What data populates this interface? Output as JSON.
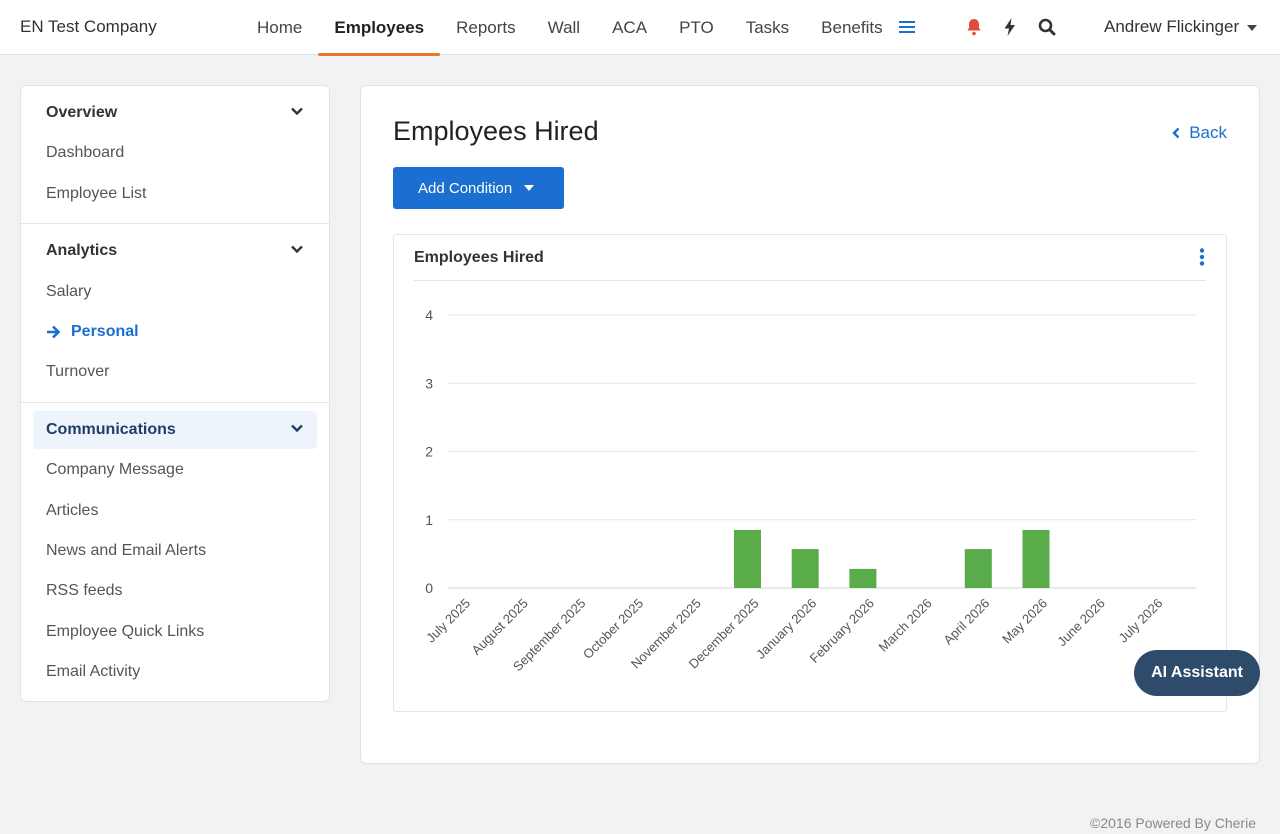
{
  "header": {
    "company": "EN Test Company",
    "nav": [
      {
        "label": "Home",
        "active": false
      },
      {
        "label": "Employees",
        "active": true
      },
      {
        "label": "Reports",
        "active": false
      },
      {
        "label": "Wall",
        "active": false
      },
      {
        "label": "ACA",
        "active": false
      },
      {
        "label": "PTO",
        "active": false
      },
      {
        "label": "Tasks",
        "active": false
      },
      {
        "label": "Benefits",
        "active": false
      }
    ],
    "icons": [
      "menu-icon",
      "bell-icon",
      "bolt-icon",
      "search-icon"
    ],
    "user_name": "Andrew Flickinger"
  },
  "sidebar": {
    "overview": {
      "title": "Overview",
      "items": [
        "Dashboard",
        "Employee List"
      ]
    },
    "analytics": {
      "title": "Analytics",
      "items": [
        "Salary",
        "Personal",
        "Turnover"
      ],
      "current": "Personal"
    },
    "communications": {
      "title": "Communications",
      "items": [
        "Company Message",
        "Articles",
        "News and Email Alerts",
        "RSS feeds",
        "Employee Quick Links",
        "Email Activity"
      ]
    }
  },
  "main": {
    "title": "Employees Hired",
    "back_label": "Back",
    "add_condition_label": "Add Condition",
    "chart_card_title": "Employees Hired"
  },
  "chart_data": {
    "type": "bar",
    "categories": [
      "July 2025",
      "August 2025",
      "September 2025",
      "October 2025",
      "November 2025",
      "December 2025",
      "January 2026",
      "February 2026",
      "March 2026",
      "April 2026",
      "May 2026",
      "June 2026",
      "July 2026"
    ],
    "values": [
      0,
      0,
      0,
      0,
      0,
      0.85,
      0.57,
      0.28,
      0,
      0.57,
      0.85,
      0,
      0
    ],
    "yticks": [
      0,
      1,
      2,
      3,
      4
    ],
    "ylim": [
      0,
      4
    ],
    "grid": true,
    "bar_color": "#5aab4a"
  },
  "ai_assistant_label": "AI Assistant",
  "footer": "©2016 Powered By Cherie",
  "colors": {
    "accent": "#1a6fd1",
    "active_tab": "#e8762c",
    "alert": "#e04b3a",
    "ai_button": "#2f4b6c"
  }
}
